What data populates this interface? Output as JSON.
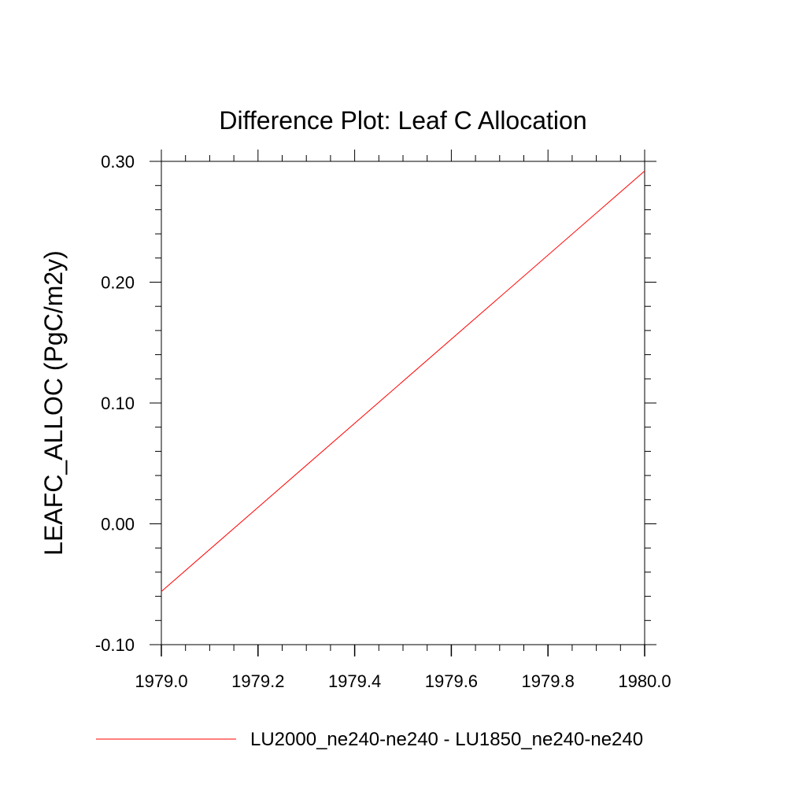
{
  "chart_data": {
    "type": "line",
    "title": "Difference Plot: Leaf C Allocation",
    "xlabel": "",
    "ylabel": "LEAFC_ALLOC  (PgC/m2y)",
    "xlim": [
      1979.0,
      1980.0
    ],
    "ylim": [
      -0.1,
      0.3
    ],
    "x_ticks": [
      1979.0,
      1979.2,
      1979.4,
      1979.6,
      1979.8,
      1980.0
    ],
    "x_tick_labels": [
      "1979.0",
      "1979.2",
      "1979.4",
      "1979.6",
      "1979.8",
      "1980.0"
    ],
    "y_ticks": [
      -0.1,
      0.0,
      0.1,
      0.2,
      0.3
    ],
    "y_tick_labels": [
      "-0.10",
      "0.00",
      "0.10",
      "0.20",
      "0.30"
    ],
    "grid": false,
    "legend_position": "bottom",
    "series": [
      {
        "name": "LU2000_ne240-ne240 - LU1850_ne240-ne240",
        "color": "#ff0000",
        "x": [
          1979.0,
          1980.0
        ],
        "y": [
          -0.056,
          0.292
        ]
      }
    ]
  }
}
